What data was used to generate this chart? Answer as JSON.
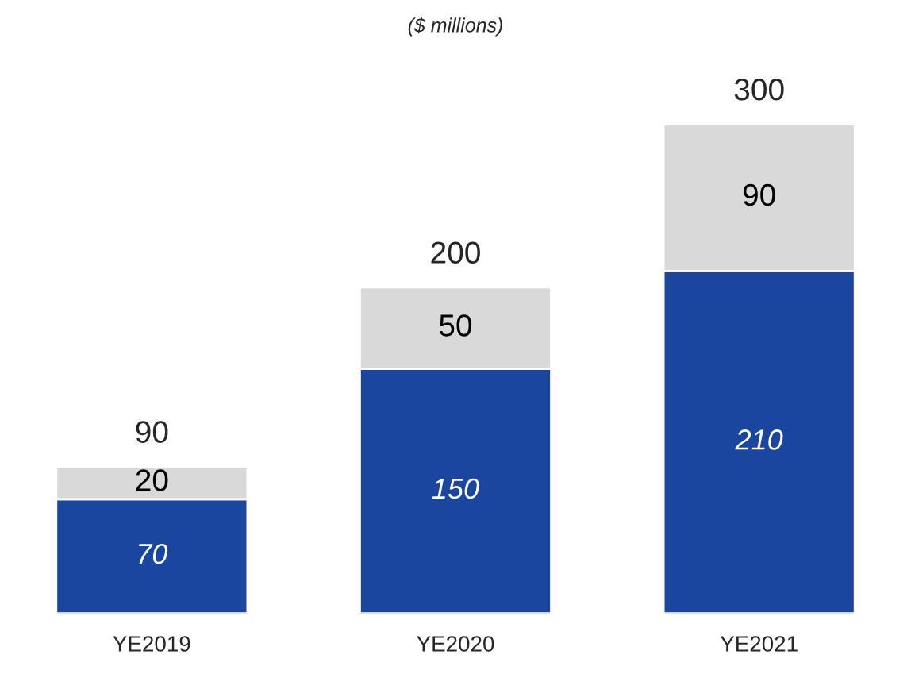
{
  "chart_data": {
    "type": "bar",
    "subtitle": "($ millions)",
    "stacked": true,
    "data_labels": true,
    "categories": [
      "YE2019",
      "YE2020",
      "YE2021"
    ],
    "series": [
      {
        "color": "#1a46a0",
        "values": [
          70,
          150,
          210
        ]
      },
      {
        "color": "#d9d9d9",
        "values": [
          20,
          50,
          90
        ]
      }
    ],
    "totals": [
      "90",
      "200",
      "300"
    ],
    "grid": false,
    "legend": false
  }
}
